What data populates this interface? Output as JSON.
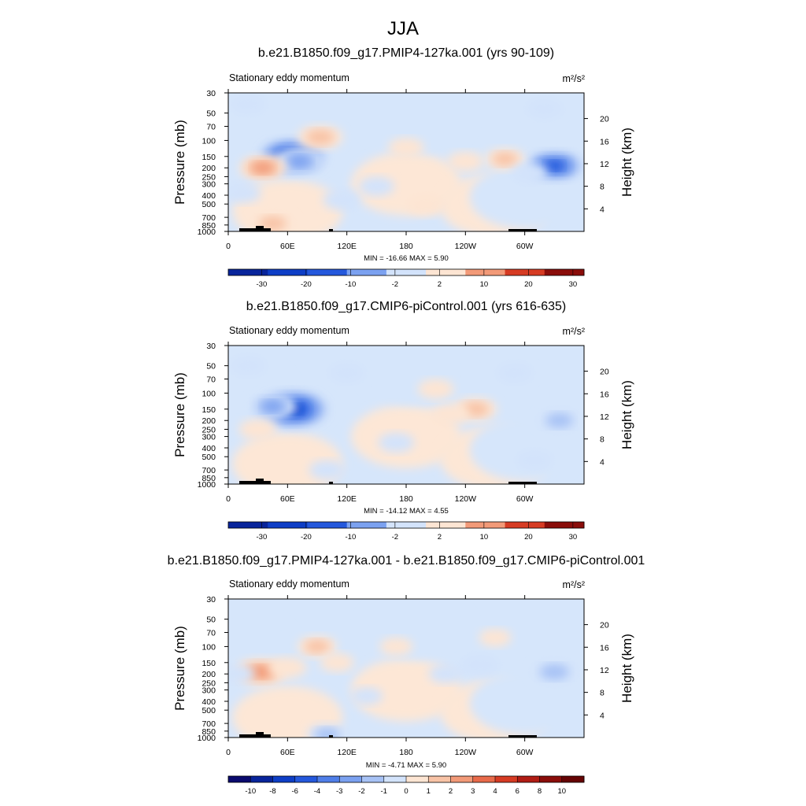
{
  "figure": {
    "title": "JJA",
    "colors": {
      "land": "#000000",
      "frame": "#000000"
    }
  },
  "chart_data": [
    {
      "type": "heatmap",
      "title": "b.e21.B1850.f09_g17.PMIP4-127ka.001 (yrs 90-109)",
      "subtitle_left": "Stationary eddy momentum",
      "units": "m²/s²",
      "xlabel": "",
      "ylabel_left": "Pressure (mb)",
      "ylabel_right": "Height (km)",
      "x_ticks": [
        "0",
        "60E",
        "120E",
        "180",
        "120W",
        "60W"
      ],
      "y_ticks": [
        "30",
        "50",
        "70",
        "100",
        "150",
        "200",
        "250",
        "300",
        "400",
        "500",
        "700",
        "850",
        "1000"
      ],
      "height_ticks": [
        "20",
        "16",
        "12",
        "8",
        "4"
      ],
      "stats": "MIN = -16.66  MAX =   5.90",
      "colorbar_labels": [
        "-30",
        "-20",
        "-10",
        "-2",
        "2",
        "10",
        "20",
        "30"
      ],
      "features": [
        {
          "lon": 65,
          "p": 150,
          "value": -12
        },
        {
          "lon": 72,
          "p": 170,
          "value": -6
        },
        {
          "lon": 35,
          "p": 200,
          "value": 5
        },
        {
          "lon": 93,
          "p": 92,
          "value": 4.5
        },
        {
          "lon": 330,
          "p": 190,
          "value": -9
        },
        {
          "lon": 280,
          "p": 160,
          "value": 3
        },
        {
          "lon": 240,
          "p": 170,
          "value": 2
        },
        {
          "lon": 180,
          "p": 120,
          "value": 2
        },
        {
          "lon": 150,
          "p": 320,
          "value": -2
        },
        {
          "lon": 115,
          "p": 450,
          "value": -2.5
        },
        {
          "lon": 15,
          "p": 380,
          "value": -2
        },
        {
          "lon": 305,
          "p": 230,
          "value": -2
        },
        {
          "lon": 20,
          "p": 40,
          "value": -2
        },
        {
          "lon": 320,
          "p": 45,
          "value": -2
        },
        {
          "lon": 200,
          "p": 520,
          "value": 2.5
        },
        {
          "lon": 45,
          "p": 820,
          "value": 4
        }
      ]
    },
    {
      "type": "heatmap",
      "title": "b.e21.B1850.f09_g17.CMIP6-piControl.001 (yrs 616-635)",
      "subtitle_left": "Stationary eddy momentum",
      "units": "m²/s²",
      "xlabel": "",
      "ylabel_left": "Pressure (mb)",
      "ylabel_right": "Height (km)",
      "x_ticks": [
        "0",
        "60E",
        "120E",
        "180",
        "120W",
        "60W"
      ],
      "y_ticks": [
        "30",
        "50",
        "70",
        "100",
        "150",
        "200",
        "250",
        "300",
        "400",
        "500",
        "700",
        "850",
        "1000"
      ],
      "height_ticks": [
        "20",
        "16",
        "12",
        "8",
        "4"
      ],
      "stats": "MIN = -14.12  MAX =   4.55",
      "colorbar_labels": [
        "-30",
        "-20",
        "-10",
        "-2",
        "2",
        "10",
        "20",
        "30"
      ],
      "features": [
        {
          "lon": 65,
          "p": 150,
          "value": -13
        },
        {
          "lon": 45,
          "p": 140,
          "value": -5
        },
        {
          "lon": 250,
          "p": 150,
          "value": 4
        },
        {
          "lon": 225,
          "p": 170,
          "value": 2.5
        },
        {
          "lon": 335,
          "p": 200,
          "value": -4
        },
        {
          "lon": 30,
          "p": 250,
          "value": 2.5
        },
        {
          "lon": 120,
          "p": 60,
          "value": -2
        },
        {
          "lon": 170,
          "p": 350,
          "value": -2
        },
        {
          "lon": 20,
          "p": 50,
          "value": -2
        },
        {
          "lon": 290,
          "p": 60,
          "value": -2
        },
        {
          "lon": 210,
          "p": 90,
          "value": 2
        },
        {
          "lon": 310,
          "p": 550,
          "value": -2
        },
        {
          "lon": 100,
          "p": 700,
          "value": -2
        }
      ]
    },
    {
      "type": "heatmap",
      "title": "b.e21.B1850.f09_g17.PMIP4-127ka.001 - b.e21.B1850.f09_g17.CMIP6-piControl.001",
      "subtitle_left": "Stationary eddy momentum",
      "units": "m²/s²",
      "xlabel": "",
      "ylabel_left": "Pressure (mb)",
      "ylabel_right": "Height (km)",
      "x_ticks": [
        "0",
        "60E",
        "120E",
        "180",
        "120W",
        "60W"
      ],
      "y_ticks": [
        "30",
        "50",
        "70",
        "100",
        "150",
        "200",
        "250",
        "300",
        "400",
        "500",
        "700",
        "850",
        "1000"
      ],
      "height_ticks": [
        "20",
        "16",
        "12",
        "8",
        "4"
      ],
      "stats": "MIN =  -4.71  MAX =   5.90",
      "colorbar_labels": [
        "-10",
        "-8",
        "-6",
        "-4",
        "-3",
        "-2",
        "-1",
        "0",
        "1",
        "2",
        "3",
        "4",
        "6",
        "8",
        "10"
      ],
      "features": [
        {
          "lon": 33,
          "p": 190,
          "value": 6
        },
        {
          "lon": 60,
          "p": 170,
          "value": 2.5
        },
        {
          "lon": 90,
          "p": 100,
          "value": 3
        },
        {
          "lon": 110,
          "p": 150,
          "value": 1.5
        },
        {
          "lon": 330,
          "p": 190,
          "value": -4.7
        },
        {
          "lon": 255,
          "p": 160,
          "value": -2.5
        },
        {
          "lon": 220,
          "p": 200,
          "value": -1.5
        },
        {
          "lon": 10,
          "p": 200,
          "value": -1.2
        },
        {
          "lon": 170,
          "p": 100,
          "value": 1.2
        },
        {
          "lon": 140,
          "p": 350,
          "value": -1
        },
        {
          "lon": 270,
          "p": 80,
          "value": 1
        },
        {
          "lon": 100,
          "p": 930,
          "value": -3
        }
      ]
    }
  ]
}
